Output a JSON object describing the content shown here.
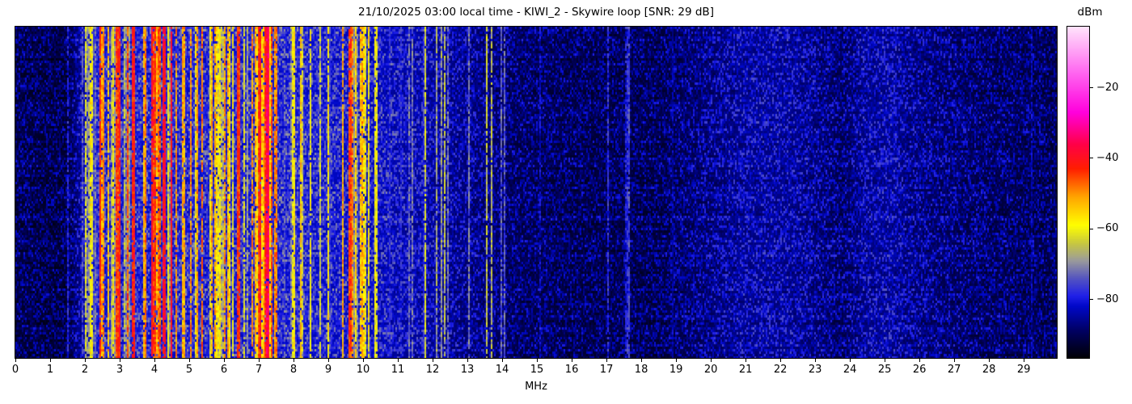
{
  "title": "21/10/2025 03:00 local time - KIWI_2 - Skywire loop [SNR: 29 dB]",
  "station": "KIWI_2",
  "antenna": "Skywire loop",
  "datetime_local": "21/10/2025 03:00",
  "snr_db": 29,
  "xlabel": "MHz",
  "xaxis": {
    "min": 0,
    "max": 29.95,
    "ticks": [
      0,
      1,
      2,
      3,
      4,
      5,
      6,
      7,
      8,
      9,
      10,
      11,
      12,
      13,
      14,
      15,
      16,
      17,
      18,
      19,
      20,
      21,
      22,
      23,
      24,
      25,
      26,
      27,
      28,
      29
    ]
  },
  "colorbar": {
    "label": "dBm",
    "vmin": -96.7,
    "vmax": -2.8,
    "ticks": [
      {
        "value": -20,
        "label": "−20"
      },
      {
        "value": -40,
        "label": "−40"
      },
      {
        "value": -60,
        "label": "−60"
      },
      {
        "value": -80,
        "label": "−80"
      }
    ]
  },
  "chart_data": {
    "type": "heatmap",
    "subtype": "rf-spectrogram-waterfall",
    "title": "21/10/2025 03:00 local time - KIWI_2 - Skywire loop [SNR: 29 dB]",
    "xlabel": "MHz",
    "ylabel": "",
    "x_range_mhz": [
      0,
      29.95
    ],
    "x_ticks_mhz": [
      0,
      1,
      2,
      3,
      4,
      5,
      6,
      7,
      8,
      9,
      10,
      11,
      12,
      13,
      14,
      15,
      16,
      17,
      18,
      19,
      20,
      21,
      22,
      23,
      24,
      25,
      26,
      27,
      28,
      29
    ],
    "y_axis": {
      "meaning": "time (no ticks shown)",
      "ticks": []
    },
    "value_unit": "dBm",
    "value_range_dbm": [
      -96.7,
      -2.8
    ],
    "colorbar_ticks_dbm": [
      -20,
      -40,
      -60,
      -80
    ],
    "legend": "none",
    "grid": "off",
    "colormap_stops": [
      {
        "v": -97,
        "c": "#000000"
      },
      {
        "v": -89,
        "c": "#000060"
      },
      {
        "v": -82,
        "c": "#0008c8"
      },
      {
        "v": -79,
        "c": "#2020e8"
      },
      {
        "v": -74,
        "c": "#5555c0"
      },
      {
        "v": -69,
        "c": "#9b9b9b"
      },
      {
        "v": -64,
        "c": "#c9c93e"
      },
      {
        "v": -59,
        "c": "#ffff00"
      },
      {
        "v": -51,
        "c": "#ffa500"
      },
      {
        "v": -43,
        "c": "#ff1e00"
      },
      {
        "v": -36,
        "c": "#ff0048"
      },
      {
        "v": -27,
        "c": "#ff00dc"
      },
      {
        "v": -16,
        "c": "#ff64f0"
      },
      {
        "v": -3,
        "c": "#ffe1fb"
      }
    ],
    "noise_floor_dbm_vs_mhz": [
      [
        0,
        -91
      ],
      [
        0.8,
        -92
      ],
      [
        1.5,
        -92
      ],
      [
        1.9,
        -85
      ],
      [
        2.3,
        -80
      ],
      [
        8.3,
        -80
      ],
      [
        9.3,
        -81
      ],
      [
        10.3,
        -82
      ],
      [
        11.5,
        -84
      ],
      [
        12.5,
        -86
      ],
      [
        13.5,
        -88
      ],
      [
        14.5,
        -90
      ],
      [
        16,
        -91
      ],
      [
        18.5,
        -91
      ],
      [
        19.5,
        -89
      ],
      [
        20.3,
        -87
      ],
      [
        21,
        -85.5
      ],
      [
        22.3,
        -85.5
      ],
      [
        23.2,
        -88
      ],
      [
        23.8,
        -89.5
      ],
      [
        24.4,
        -86
      ],
      [
        25.1,
        -85
      ],
      [
        25.7,
        -87
      ],
      [
        26.5,
        -88.5
      ],
      [
        28,
        -90
      ],
      [
        29.95,
        -91
      ]
    ],
    "busy_bands": [
      {
        "f0": 1.5,
        "f1": 1.85,
        "density": 0.18,
        "lmin": -80,
        "lmax": -68
      },
      {
        "f0": 1.85,
        "f1": 2.35,
        "density": 0.3,
        "lmin": -78,
        "lmax": -58
      },
      {
        "f0": 2.35,
        "f1": 3.1,
        "density": 0.58,
        "lmin": -72,
        "lmax": -40
      },
      {
        "f0": 3.1,
        "f1": 3.55,
        "density": 0.42,
        "lmin": -74,
        "lmax": -50
      },
      {
        "f0": 3.55,
        "f1": 4.65,
        "density": 0.6,
        "lmin": -70,
        "lmax": -38
      },
      {
        "f0": 4.65,
        "f1": 5.15,
        "density": 0.38,
        "lmin": -74,
        "lmax": -52
      },
      {
        "f0": 5.15,
        "f1": 5.6,
        "density": 0.52,
        "lmin": -70,
        "lmax": -46
      },
      {
        "f0": 5.6,
        "f1": 6.45,
        "density": 0.62,
        "lmin": -66,
        "lmax": -48
      },
      {
        "f0": 6.45,
        "f1": 6.95,
        "density": 0.4,
        "lmin": -74,
        "lmax": -50
      },
      {
        "f0": 6.95,
        "f1": 7.55,
        "density": 0.58,
        "lmin": -68,
        "lmax": -40
      },
      {
        "f0": 7.55,
        "f1": 8.35,
        "density": 0.36,
        "lmin": -76,
        "lmax": -54
      },
      {
        "f0": 8.35,
        "f1": 9.3,
        "density": 0.17,
        "lmin": -78,
        "lmax": -58
      },
      {
        "f0": 9.3,
        "f1": 10.45,
        "density": 0.36,
        "lmin": -74,
        "lmax": -46
      },
      {
        "f0": 10.45,
        "f1": 11.55,
        "density": 0.15,
        "lmin": -80,
        "lmax": -66
      },
      {
        "f0": 11.55,
        "f1": 12.3,
        "density": 0.17,
        "lmin": -78,
        "lmax": -62
      },
      {
        "f0": 12.3,
        "f1": 14.2,
        "density": 0.08,
        "lmin": -80,
        "lmax": -64
      },
      {
        "f0": 14.2,
        "f1": 19.0,
        "density": 0.02,
        "lmin": -86,
        "lmax": -78
      },
      {
        "f0": 19.0,
        "f1": 29.95,
        "density": 0.012,
        "lmin": -87,
        "lmax": -80
      }
    ],
    "carriers": [
      {
        "f": 2.0,
        "dbm": -62
      },
      {
        "f": 2.5,
        "dbm": -50
      },
      {
        "f": 2.65,
        "dbm": -54
      },
      {
        "f": 2.88,
        "dbm": -44
      },
      {
        "f": 3.2,
        "dbm": -46
      },
      {
        "f": 3.33,
        "dbm": -42
      },
      {
        "f": 3.7,
        "dbm": -48
      },
      {
        "f": 3.9,
        "dbm": -44
      },
      {
        "f": 4.25,
        "dbm": -40
      },
      {
        "f": 4.47,
        "dbm": -46
      },
      {
        "f": 4.85,
        "dbm": -52
      },
      {
        "f": 5.0,
        "dbm": -50
      },
      {
        "f": 5.35,
        "dbm": -48
      },
      {
        "f": 5.73,
        "dbm": -52
      },
      {
        "f": 6.1,
        "dbm": -52
      },
      {
        "f": 6.35,
        "dbm": -44
      },
      {
        "f": 6.8,
        "dbm": -50
      },
      {
        "f": 7.2,
        "dbm": -36
      },
      {
        "f": 7.33,
        "dbm": -46
      },
      {
        "f": 7.5,
        "dbm": -52
      },
      {
        "f": 8.0,
        "dbm": -58
      },
      {
        "f": 8.45,
        "dbm": -60
      },
      {
        "f": 8.97,
        "dbm": -58
      },
      {
        "f": 9.41,
        "dbm": -52
      },
      {
        "f": 9.58,
        "dbm": -44
      },
      {
        "f": 9.66,
        "dbm": -50
      },
      {
        "f": 9.77,
        "dbm": -56
      },
      {
        "f": 9.9,
        "dbm": -54
      },
      {
        "f": 10.0,
        "dbm": -56
      },
      {
        "f": 10.14,
        "dbm": -58
      },
      {
        "f": 11.4,
        "dbm": -72
      },
      {
        "f": 11.77,
        "dbm": -62
      },
      {
        "f": 12.1,
        "dbm": -68
      },
      {
        "f": 12.41,
        "dbm": -72
      },
      {
        "f": 13.0,
        "dbm": -72
      },
      {
        "f": 13.55,
        "dbm": -64
      },
      {
        "f": 13.69,
        "dbm": -66
      },
      {
        "f": 14.05,
        "dbm": -74
      },
      {
        "f": 17.0,
        "dbm": -78
      },
      {
        "f": 17.62,
        "dbm": -76
      }
    ]
  }
}
